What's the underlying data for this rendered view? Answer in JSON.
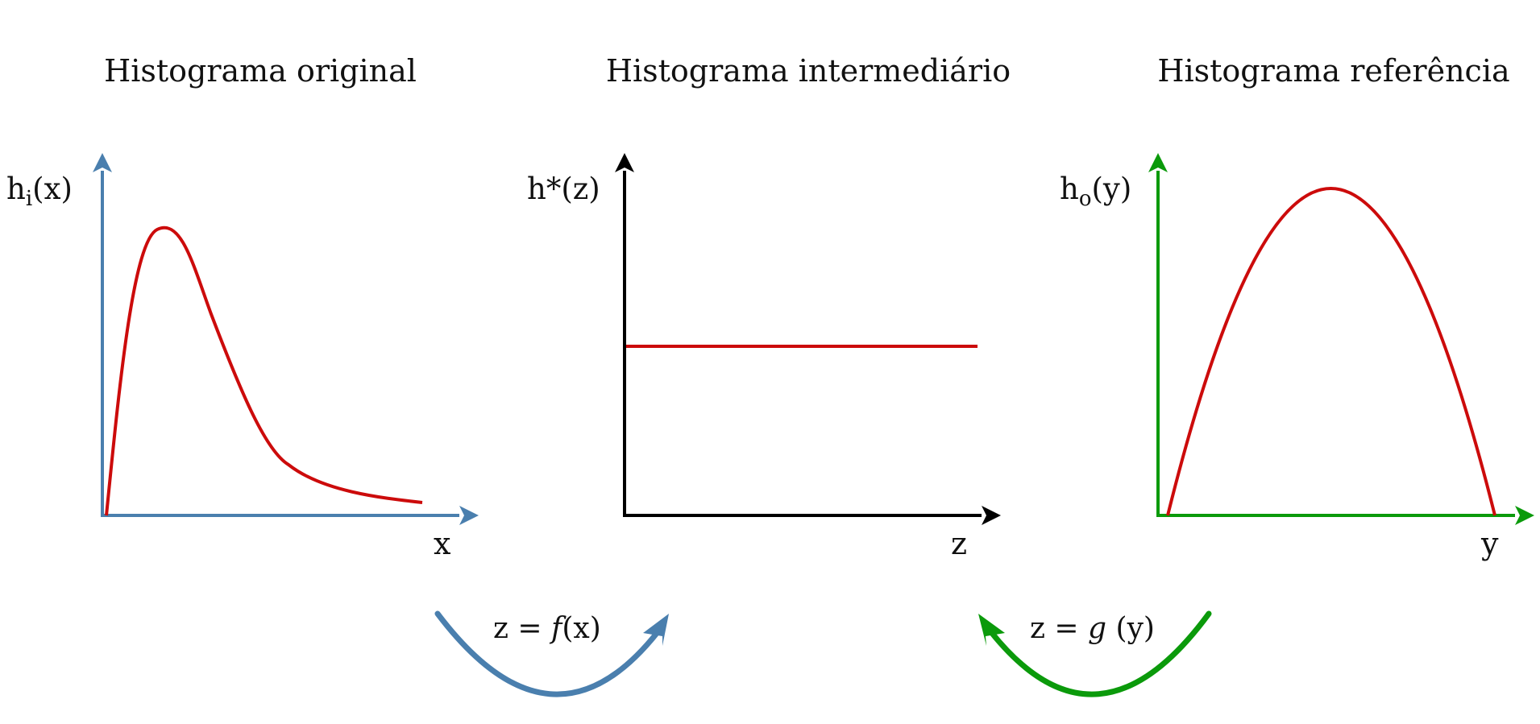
{
  "colors": {
    "axis_blue": "#4a7fae",
    "axis_black": "#000000",
    "axis_green": "#0b9a0b",
    "curve_red": "#cc0b0b"
  },
  "panels": [
    {
      "title": "Histograma original",
      "y_label": {
        "main": "h",
        "sub": "i",
        "arg": "(x)"
      },
      "x_label": "x"
    },
    {
      "title": "Histograma intermediário",
      "y_label": {
        "main": "h*",
        "sub": "",
        "arg": "(z)"
      },
      "x_label": "z"
    },
    {
      "title": "Histograma referência",
      "y_label": {
        "main": "h",
        "sub": "o",
        "arg": "(y)"
      },
      "x_label": "y"
    }
  ],
  "transforms": [
    {
      "lhs": "z = ",
      "func": "f",
      "arg": "(x)"
    },
    {
      "lhs": "z = ",
      "func": "g",
      "arg": " (y)"
    }
  ]
}
